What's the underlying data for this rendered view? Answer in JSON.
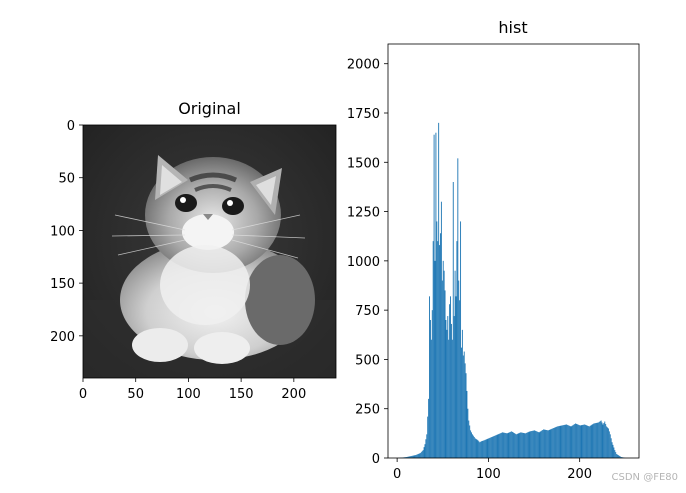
{
  "chart_data": [
    {
      "type": "image",
      "title": "Original",
      "image_description_name": "kitten-grayscale-image",
      "xlim": [
        0,
        240
      ],
      "ylim": [
        240,
        0
      ],
      "xticks": [
        0,
        50,
        100,
        150,
        200
      ],
      "yticks": [
        0,
        50,
        100,
        150,
        200
      ]
    },
    {
      "type": "histogram",
      "title": "hist",
      "xlim": [
        -10,
        265
      ],
      "ylim": [
        0,
        2100
      ],
      "xticks": [
        0,
        100,
        200
      ],
      "yticks": [
        0,
        250,
        500,
        750,
        1000,
        1250,
        1500,
        1750,
        2000
      ],
      "bar_color": "#1f77b4",
      "bins": 256,
      "x": [
        0,
        5,
        10,
        15,
        20,
        25,
        28,
        30,
        32,
        34,
        35,
        36,
        37,
        38,
        39,
        40,
        41,
        42,
        43,
        44,
        45,
        46,
        47,
        48,
        49,
        50,
        51,
        52,
        53,
        54,
        55,
        56,
        57,
        58,
        59,
        60,
        61,
        62,
        63,
        64,
        65,
        66,
        67,
        68,
        69,
        70,
        71,
        72,
        73,
        74,
        75,
        76,
        77,
        78,
        80,
        82,
        85,
        88,
        90,
        92,
        95,
        100,
        105,
        110,
        115,
        120,
        125,
        130,
        135,
        140,
        145,
        150,
        155,
        160,
        165,
        170,
        175,
        180,
        185,
        190,
        195,
        200,
        205,
        210,
        215,
        220,
        223,
        225,
        227,
        229,
        231,
        233,
        235,
        238,
        240,
        245,
        250,
        255
      ],
      "values": [
        0,
        2,
        5,
        10,
        15,
        25,
        40,
        70,
        120,
        300,
        820,
        700,
        600,
        750,
        1100,
        1640,
        1000,
        1650,
        1200,
        1100,
        1700,
        1080,
        1140,
        1300,
        900,
        1000,
        950,
        850,
        700,
        650,
        720,
        600,
        780,
        820,
        680,
        600,
        1400,
        720,
        950,
        820,
        1100,
        1520,
        900,
        800,
        1200,
        560,
        650,
        520,
        540,
        480,
        430,
        340,
        250,
        190,
        140,
        120,
        100,
        90,
        80,
        85,
        90,
        100,
        110,
        120,
        130,
        125,
        135,
        120,
        130,
        125,
        135,
        140,
        130,
        145,
        140,
        150,
        160,
        165,
        170,
        160,
        175,
        165,
        170,
        160,
        175,
        180,
        190,
        170,
        185,
        160,
        150,
        120,
        80,
        40,
        20,
        5,
        0,
        0
      ]
    }
  ],
  "watermark": "CSDN @FE80"
}
